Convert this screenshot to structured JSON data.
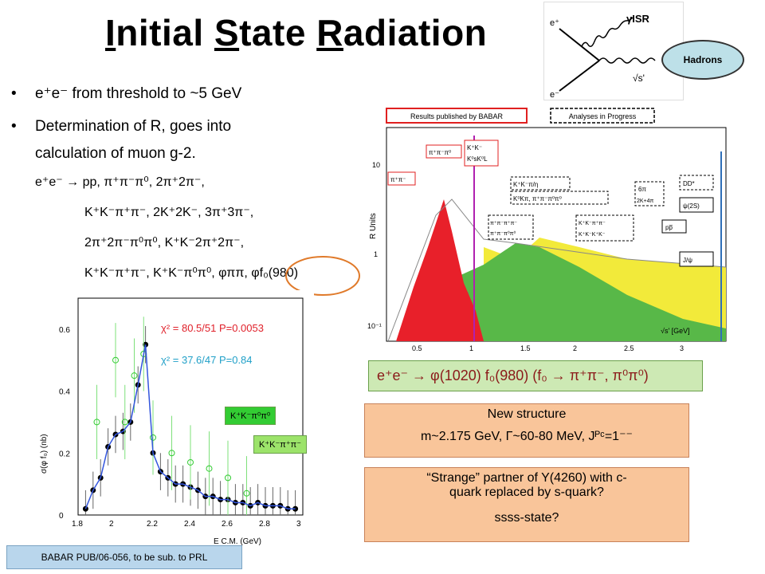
{
  "title": {
    "i": "I",
    "nitial": "nitial ",
    "s": "S",
    "tate": "tate ",
    "r": "R",
    "adiation": "adiation"
  },
  "bullets": [
    {
      "text": "e⁺e⁻  from threshold to  ~5 GeV"
    },
    {
      "text": "Determination of R,  goes into",
      "continuation": "calculation of muon g-2."
    }
  ],
  "processes": [
    "e⁺e⁻ → pp, π⁺π⁻π⁰, 2π⁺2π⁻,",
    "K⁺K⁻π⁺π⁻, 2K⁺2K⁻, 3π⁺3π⁻,",
    "2π⁺2π⁻π⁰π⁰, K⁺K⁻2π⁺2π⁻,",
    "K⁺K⁻π⁺π⁻, K⁺K⁻π⁰π⁰, φππ, φf₀(980)"
  ],
  "feynman": {
    "e_plus": "e⁺",
    "e_minus": "e⁻",
    "gamma": "γISR",
    "sqrt_s": "√s'",
    "hadrons": "Hadrons"
  },
  "rplot": {
    "legend_published": "Results published by BABAR",
    "legend_progress": "Analyses in Progress",
    "ylabel": "R Units",
    "xlabel": "√s' [GeV]",
    "yticks": [
      "10",
      "1",
      "10⁻¹"
    ],
    "xticks": [
      "0.5",
      "1",
      "1.5",
      "2",
      "2.5",
      "3"
    ],
    "labels": {
      "pipi": "π⁺π⁻",
      "pipipi0": "π⁺π⁻π⁰",
      "kk": "K⁺K⁻",
      "k0k0": "K⁰sK⁰L",
      "kkpi": "K⁺K⁻π/η",
      "k0kpi": "K⁰Kπ, π⁺π⁻π⁰π⁰",
      "fourpi_a": "π⁺π⁻π⁺π⁻",
      "fourpi_b": "π⁺π⁻π⁰π⁰",
      "kkpipi": "K⁺K⁻π⁺π⁻",
      "kkkk": "K⁺K⁻K⁺K⁻",
      "sixpi": "6π",
      "twok4pi": "2K+4π",
      "pp": "pp̅",
      "dd": "DD*",
      "psi2s": "ψ(2S)",
      "jpsi": "J/ψ"
    }
  },
  "reaction": "e⁺e⁻ → φ(1020) f₀(980)  (f₀ → π⁺π⁻, π⁰π⁰)",
  "box_new": {
    "line1": "New structure",
    "line2": "m~2.175 GeV, Γ~60-80 MeV, Jᴾᶜ=1⁻⁻"
  },
  "box_strange": {
    "line1": "“Strange” partner of Y(4260) with c-",
    "line2": "quark replaced by s-quark?",
    "line3": "ssss-state?"
  },
  "xsec": {
    "ylabel": "σ(φ f₀) (nb)",
    "xlabel": "E C.M. (GeV)",
    "yticks": [
      "0",
      "0.2",
      "0.4",
      "0.6"
    ],
    "xticks": [
      "1.8",
      "2",
      "2.2",
      "2.4",
      "2.6",
      "2.8",
      "3"
    ],
    "chi2_red": "χ² = 80.5/51 P=0.0053",
    "chi2_cyan": "χ² = 37.6/47 P=0.84",
    "label_neutral": "K⁺K⁻π⁰π⁰",
    "label_charged": "K⁺K⁻π⁺π⁻"
  },
  "chart_data": {
    "type": "scatter",
    "xlabel": "E C.M. (GeV)",
    "ylabel": "σ(φ f₀) (nb)",
    "xlim": [
      1.8,
      3.0
    ],
    "ylim": [
      0,
      0.7
    ],
    "series": [
      {
        "name": "K⁺K⁻π⁺π⁻",
        "x": [
          1.84,
          1.88,
          1.92,
          1.96,
          2.0,
          2.04,
          2.08,
          2.12,
          2.16,
          2.2,
          2.24,
          2.28,
          2.32,
          2.36,
          2.4,
          2.44,
          2.48,
          2.52,
          2.56,
          2.6,
          2.64,
          2.68,
          2.72,
          2.76,
          2.8,
          2.84,
          2.88,
          2.92,
          2.96
        ],
        "y": [
          0.02,
          0.08,
          0.12,
          0.22,
          0.26,
          0.27,
          0.3,
          0.42,
          0.55,
          0.2,
          0.14,
          0.12,
          0.1,
          0.1,
          0.09,
          0.08,
          0.06,
          0.06,
          0.05,
          0.05,
          0.04,
          0.04,
          0.03,
          0.04,
          0.03,
          0.03,
          0.03,
          0.02,
          0.02
        ]
      },
      {
        "name": "K⁺K⁻π⁰π⁰",
        "x": [
          1.9,
          2.0,
          2.05,
          2.1,
          2.15,
          2.2,
          2.3,
          2.4,
          2.5,
          2.6,
          2.7
        ],
        "y": [
          0.3,
          0.5,
          0.3,
          0.45,
          0.52,
          0.25,
          0.2,
          0.17,
          0.15,
          0.12,
          0.07
        ]
      }
    ]
  }
}
